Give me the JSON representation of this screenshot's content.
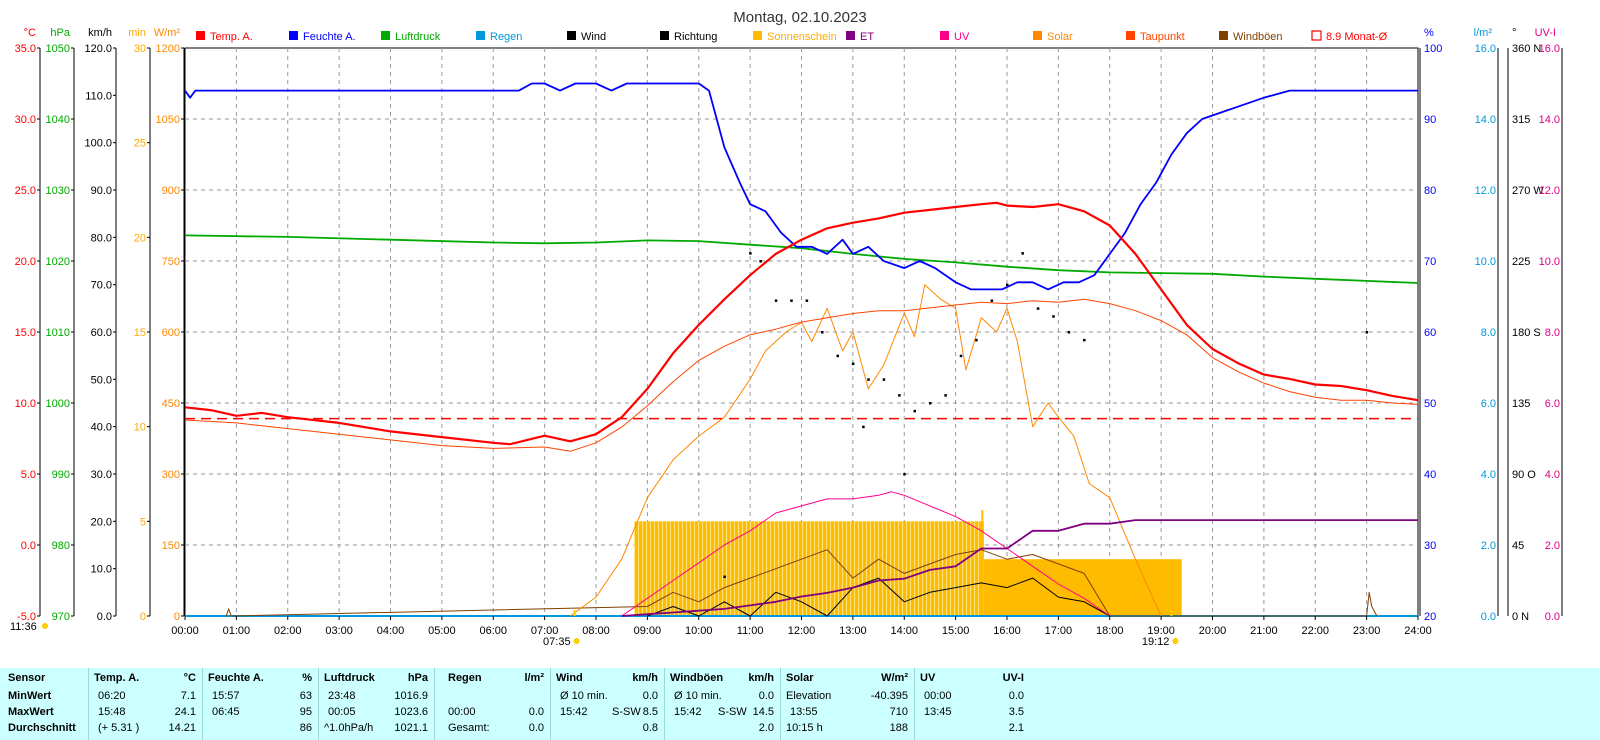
{
  "chart_data": {
    "type": "line",
    "title": "Montag, 02.10.2023",
    "x_unit": "hours",
    "xlim": [
      0,
      24
    ],
    "x_ticks": [
      "00:00",
      "01:00",
      "02:00",
      "03:00",
      "04:00",
      "05:00",
      "06:00",
      "07:00",
      "08:00",
      "09:00",
      "10:00",
      "11:00",
      "12:00",
      "13:00",
      "14:00",
      "15:00",
      "16:00",
      "17:00",
      "18:00",
      "19:00",
      "20:00",
      "21:00",
      "22:00",
      "23:00",
      "24:00"
    ],
    "sunrise_label": "07:35",
    "sunset_label": "19:12",
    "current_time_label": "11:36",
    "left_axes": [
      {
        "unit": "°C",
        "color": "#ff0000",
        "min": -5,
        "max": 35,
        "ticks": [
          "35.0",
          "30.0",
          "25.0",
          "20.0",
          "15.0",
          "10.0",
          "5.0",
          "0.0",
          "-5.0"
        ]
      },
      {
        "unit": "hPa",
        "color": "#00aa00",
        "min": 970,
        "max": 1050,
        "ticks": [
          "1050",
          "1040",
          "1030",
          "1020",
          "1010",
          "1000",
          "990",
          "980",
          "970"
        ]
      },
      {
        "unit": "km/h",
        "color": "#000000",
        "min": 0,
        "max": 120,
        "ticks": [
          "120.0",
          "110.0",
          "100.0",
          "90.0",
          "80.0",
          "70.0",
          "60.0",
          "50.0",
          "40.0",
          "30.0",
          "20.0",
          "10.0",
          "0.0"
        ]
      },
      {
        "unit": "min",
        "color": "#ffaa00",
        "min": 0,
        "max": 30,
        "ticks": [
          "30",
          "25",
          "20",
          "15",
          "10",
          "5",
          "0"
        ]
      },
      {
        "unit": "W/m²",
        "color": "#ff8800",
        "min": 0,
        "max": 1200,
        "ticks": [
          "1200",
          "1050",
          "900",
          "750",
          "600",
          "450",
          "300",
          "150",
          "0"
        ]
      }
    ],
    "right_axes": [
      {
        "unit": "%",
        "color": "#0000ff",
        "min": 20,
        "max": 100,
        "ticks": [
          "100",
          "90",
          "80",
          "70",
          "60",
          "50",
          "40",
          "30",
          "20"
        ]
      },
      {
        "unit": "l/m²",
        "color": "#0099dd",
        "min": 0,
        "max": 16,
        "ticks": [
          "16.0",
          "14.0",
          "12.0",
          "10.0",
          "8.0",
          "6.0",
          "4.0",
          "2.0",
          "0.0"
        ]
      },
      {
        "unit": "°",
        "color": "#000000",
        "min": 0,
        "max": 360,
        "ticks": [
          "360 N",
          "315",
          "270 W",
          "225",
          "180 S",
          "135",
          "90 O",
          "45",
          "0 N"
        ]
      },
      {
        "unit": "UV-I",
        "color": "#dd0088",
        "min": 0,
        "max": 16,
        "ticks": [
          "16.0",
          "14.0",
          "12.0",
          "10.0",
          "8.0",
          "6.0",
          "4.0",
          "2.0",
          "0.0"
        ]
      }
    ],
    "legend": [
      {
        "label": "Temp. A.",
        "color": "#ff0000"
      },
      {
        "label": "Feuchte A.",
        "color": "#0000ff"
      },
      {
        "label": "Luftdruck",
        "color": "#00aa00"
      },
      {
        "label": "Regen",
        "color": "#0099dd"
      },
      {
        "label": "Wind",
        "color": "#000000"
      },
      {
        "label": "Richtung",
        "color": "#000000"
      },
      {
        "label": "Sonnenschein",
        "color": "#ffbb00"
      },
      {
        "label": "ET",
        "color": "#800080"
      },
      {
        "label": "UV",
        "color": "#ff0088"
      },
      {
        "label": "Solar",
        "color": "#ff8800"
      },
      {
        "label": "Taupunkt",
        "color": "#ff4400"
      },
      {
        "label": "Windböen",
        "color": "#804000"
      },
      {
        "label": "8.9 Monat-Ø",
        "color": "#ff0000"
      }
    ],
    "monthly_avg_temp": 8.9,
    "series": [
      {
        "name": "Temp. A.",
        "axis": "°C",
        "color": "#ff0000",
        "width": 2.2,
        "x": [
          0,
          0.5,
          1,
          1.5,
          2,
          3,
          4,
          5,
          6,
          6.33,
          7,
          7.5,
          8,
          8.5,
          9,
          9.5,
          10,
          10.5,
          11,
          11.5,
          12,
          12.5,
          13,
          13.5,
          14,
          14.5,
          15,
          15.5,
          15.8,
          16,
          16.5,
          17,
          17.5,
          18,
          18.5,
          19,
          19.5,
          20,
          20.5,
          21,
          21.5,
          22,
          22.5,
          23,
          23.5,
          24
        ],
        "y": [
          9.7,
          9.5,
          9.1,
          9.3,
          9.0,
          8.6,
          8.0,
          7.6,
          7.2,
          7.1,
          7.7,
          7.3,
          7.8,
          9.0,
          11.0,
          13.5,
          15.5,
          17.3,
          19.0,
          20.5,
          21.5,
          22.3,
          22.7,
          23.0,
          23.4,
          23.6,
          23.8,
          24.0,
          24.1,
          23.9,
          23.8,
          24.0,
          23.5,
          22.5,
          20.5,
          18.0,
          15.5,
          13.8,
          12.8,
          12.0,
          11.7,
          11.3,
          11.2,
          10.9,
          10.5,
          10.2
        ]
      },
      {
        "name": "Taupunkt",
        "axis": "°C",
        "color": "#ff4400",
        "width": 1,
        "x": [
          0,
          1,
          2,
          3,
          4,
          5,
          6,
          7,
          7.5,
          8,
          8.5,
          9,
          9.5,
          10,
          10.5,
          11,
          11.5,
          12,
          12.5,
          13,
          13.5,
          14,
          14.5,
          15,
          15.5,
          16,
          16.5,
          17,
          17.5,
          18,
          18.5,
          19,
          19.5,
          20,
          20.5,
          21,
          21.5,
          22,
          22.5,
          23,
          23.5,
          24
        ],
        "y": [
          8.8,
          8.6,
          8.2,
          7.8,
          7.4,
          7.0,
          6.8,
          6.9,
          6.6,
          7.2,
          8.3,
          9.8,
          11.5,
          13.0,
          14.0,
          14.8,
          15.2,
          15.7,
          16.0,
          16.3,
          16.5,
          16.5,
          16.7,
          16.9,
          17.1,
          17.0,
          17.2,
          17.1,
          17.3,
          17.0,
          16.5,
          15.8,
          14.8,
          13.2,
          12.2,
          11.4,
          10.8,
          10.4,
          10.2,
          10.2,
          10.0,
          9.9
        ]
      },
      {
        "name": "Feuchte A.",
        "axis": "%",
        "color": "#0000ff",
        "width": 1.8,
        "x": [
          0,
          0.1,
          0.2,
          1,
          2,
          3,
          4,
          5,
          6,
          6.5,
          6.75,
          7,
          7.3,
          7.6,
          8,
          8.3,
          8.6,
          9,
          9.5,
          10,
          10.2,
          10.5,
          10.8,
          11,
          11.3,
          11.6,
          11.9,
          12.2,
          12.5,
          12.8,
          13,
          13.3,
          13.6,
          14,
          14.3,
          14.6,
          15,
          15.3,
          15.6,
          15.9,
          16.2,
          16.5,
          16.8,
          17.1,
          17.4,
          17.7,
          18,
          18.3,
          18.6,
          18.9,
          19.2,
          19.5,
          19.8,
          20.2,
          20.6,
          21,
          21.5,
          22,
          22.5,
          23,
          23.5,
          24
        ],
        "y": [
          94,
          93,
          94,
          94,
          94,
          94,
          94,
          94,
          94,
          94,
          95,
          95,
          94,
          95,
          95,
          94,
          95,
          95,
          95,
          95,
          94,
          86,
          81,
          78,
          77,
          74,
          72,
          72,
          71,
          73,
          71,
          72,
          70,
          69,
          70,
          69,
          67,
          66,
          66,
          66,
          67,
          67,
          66,
          67,
          67,
          68,
          71,
          74,
          78,
          81,
          85,
          88,
          90,
          91,
          92,
          93,
          94,
          94,
          94,
          94,
          94,
          94
        ]
      },
      {
        "name": "Luftdruck",
        "axis": "hPa",
        "color": "#00aa00",
        "width": 1.8,
        "x": [
          0,
          2,
          4,
          6,
          7,
          8,
          9,
          10,
          11,
          12,
          13,
          14,
          15,
          16,
          17,
          18,
          19,
          20,
          21,
          22,
          23,
          24
        ],
        "y": [
          1023.6,
          1023.4,
          1023.0,
          1022.6,
          1022.5,
          1022.6,
          1022.9,
          1022.8,
          1022.3,
          1021.8,
          1021.0,
          1020.3,
          1019.8,
          1019.2,
          1018.7,
          1018.4,
          1018.3,
          1018.2,
          1017.8,
          1017.5,
          1017.2,
          1016.9
        ]
      },
      {
        "name": "Solar",
        "axis": "W/m²",
        "color": "#ff8800",
        "width": 1,
        "x": [
          7.5,
          8,
          8.5,
          9,
          9.5,
          10,
          10.5,
          11,
          11.3,
          11.7,
          12,
          12.2,
          12.5,
          12.8,
          13,
          13.3,
          13.6,
          14,
          14.2,
          14.4,
          14.7,
          15,
          15.2,
          15.5,
          15.8,
          16,
          16.2,
          16.5,
          16.8,
          17,
          17.3,
          17.6,
          18,
          18.5,
          19
        ],
        "y": [
          0,
          40,
          120,
          250,
          330,
          380,
          420,
          500,
          560,
          600,
          620,
          580,
          650,
          560,
          600,
          480,
          530,
          640,
          590,
          700,
          670,
          650,
          520,
          630,
          600,
          650,
          580,
          400,
          450,
          420,
          380,
          280,
          250,
          120,
          0
        ]
      },
      {
        "name": "UV",
        "axis": "UV-I",
        "color": "#ff0088",
        "width": 1,
        "x": [
          8.5,
          9,
          9.5,
          10,
          10.5,
          11,
          11.5,
          12,
          12.5,
          13,
          13.5,
          13.75,
          14,
          14.5,
          15,
          15.5,
          16,
          16.5,
          17,
          17.5,
          18
        ],
        "y": [
          0,
          0.5,
          1.0,
          1.5,
          2.0,
          2.4,
          2.9,
          3.1,
          3.3,
          3.3,
          3.4,
          3.5,
          3.4,
          3.1,
          2.8,
          2.4,
          1.9,
          1.4,
          0.9,
          0.5,
          0
        ]
      },
      {
        "name": "ET",
        "axis": "l/m²",
        "color": "#800080",
        "width": 1.8,
        "x": [
          8.5,
          9,
          9.5,
          10,
          10.5,
          11,
          11.5,
          12,
          12.5,
          13,
          13.5,
          14,
          14.5,
          15,
          15.5,
          16,
          16.5,
          17,
          17.5,
          18,
          18.5,
          19,
          19.5,
          20,
          21,
          22,
          23,
          24
        ],
        "y": [
          0,
          0.05,
          0.1,
          0.15,
          0.2,
          0.3,
          0.4,
          0.55,
          0.65,
          0.8,
          1.0,
          1.05,
          1.3,
          1.4,
          1.9,
          1.9,
          2.4,
          2.4,
          2.6,
          2.6,
          2.7,
          2.7,
          2.7,
          2.7,
          2.7,
          2.7,
          2.7,
          2.7
        ]
      },
      {
        "name": "Regen",
        "axis": "l/m²",
        "color": "#0099dd",
        "width": 2,
        "x": [
          0,
          24
        ],
        "y": [
          0,
          0
        ]
      },
      {
        "name": "Wind",
        "axis": "km/h",
        "color": "#000000",
        "width": 1,
        "x": [
          9,
          9.5,
          10,
          10.5,
          11,
          11.5,
          12,
          12.5,
          13,
          13.5,
          14,
          14.5,
          15,
          15.5,
          16,
          16.5,
          17,
          17.5,
          18
        ],
        "y": [
          0,
          2,
          0,
          3,
          0,
          5,
          3,
          0,
          6,
          8,
          3,
          5,
          6,
          7,
          6,
          8,
          4,
          3,
          0
        ]
      },
      {
        "name": "Windböen",
        "axis": "km/h",
        "color": "#804000",
        "width": 1,
        "x": [
          0.8,
          0.85,
          0.9,
          9,
          9.5,
          10,
          10.5,
          11,
          11.5,
          12,
          12.5,
          13,
          13.5,
          14,
          14.5,
          15,
          15.5,
          16,
          16.5,
          17,
          17.5,
          18,
          23,
          23.05,
          23.1,
          23.2
        ],
        "y": [
          0,
          1.5,
          0,
          2,
          5,
          3,
          6,
          8,
          10,
          12,
          14,
          8,
          12,
          9,
          11,
          13,
          14,
          12,
          13,
          11,
          9,
          0,
          0,
          5,
          2,
          0
        ]
      }
    ],
    "sunshine_minutes": {
      "axis": "min",
      "color": "#ffbb00",
      "x_start": [
        8.75,
        15.55
      ],
      "x_end": [
        15.55,
        19.4
      ],
      "values": [
        5,
        3
      ]
    },
    "direction_points": {
      "axis": "°",
      "x": [
        11.2,
        11.5,
        11.8,
        12.1,
        12.4,
        12.7,
        13.0,
        13.3,
        13.6,
        13.9,
        14.2,
        14.5,
        14.8,
        15.1,
        15.4,
        15.7,
        16.0,
        16.3,
        16.6,
        16.9,
        17.2,
        17.5,
        10.5,
        11.0,
        13.2,
        14.0,
        23.0
      ],
      "y": [
        225,
        200,
        200,
        200,
        180,
        165,
        160,
        150,
        150,
        140,
        130,
        135,
        140,
        165,
        175,
        200,
        210,
        230,
        195,
        190,
        180,
        175,
        25,
        230,
        120,
        90,
        180
      ]
    }
  },
  "stats": {
    "sensor": {
      "h": "Sensor",
      "r1": "MinWert",
      "r2": "MaxWert",
      "r3": "Durchschnitt"
    },
    "temp": {
      "h": "Temp. A.",
      "u": "°C",
      "r1t": "06:20",
      "r1v": "7.1",
      "r2t": "15:48",
      "r2v": "24.1",
      "r3t": "(+ 5.31 )",
      "r3v": "14.21"
    },
    "feuchte": {
      "h": "Feuchte A.",
      "u": "%",
      "r1t": "15:57",
      "r1v": "63",
      "r2t": "06:45",
      "r2v": "95",
      "r3t": "",
      "r3v": "86"
    },
    "luft": {
      "h": "Luftdruck",
      "u": "hPa",
      "r1t": "23:48",
      "r1v": "1016.9",
      "r2t": "00:05",
      "r2v": "1023.6",
      "r3t": "^1.0hPa/h",
      "r3v": "1021.1"
    },
    "regen": {
      "h": "Regen",
      "u": "l/m²",
      "r1t": "",
      "r1v": "",
      "r2t": "00:00",
      "r2v": "0.0",
      "r3t": "Gesamt:",
      "r3v": "0.0"
    },
    "wind": {
      "h": "Wind",
      "u": "km/h",
      "r1t": "Ø 10 min.",
      "r1v": "0.0",
      "r2t": "15:42",
      "r2m": "S-SW",
      "r2v": "8.5",
      "r3t": "",
      "r3v": "0.8"
    },
    "boeen": {
      "h": "Windböen",
      "u": "km/h",
      "r1t": "Ø 10 min.",
      "r1v": "0.0",
      "r2t": "15:42",
      "r2m": "S-SW",
      "r2v": "14.5",
      "r3t": "",
      "r3v": "2.0"
    },
    "solar": {
      "h": "Solar",
      "u": "W/m²",
      "r1t": "Elevation",
      "r1v": "-40.395",
      "r2t": "13:55",
      "r2v": "710",
      "r3t": "10:15 h",
      "r3v": "188"
    },
    "uv": {
      "h": "UV",
      "u": "UV-I",
      "r1t": "00:00",
      "r1v": "0.0",
      "r2t": "13:45",
      "r2v": "3.5",
      "r3t": "",
      "r3v": "2.1"
    }
  }
}
